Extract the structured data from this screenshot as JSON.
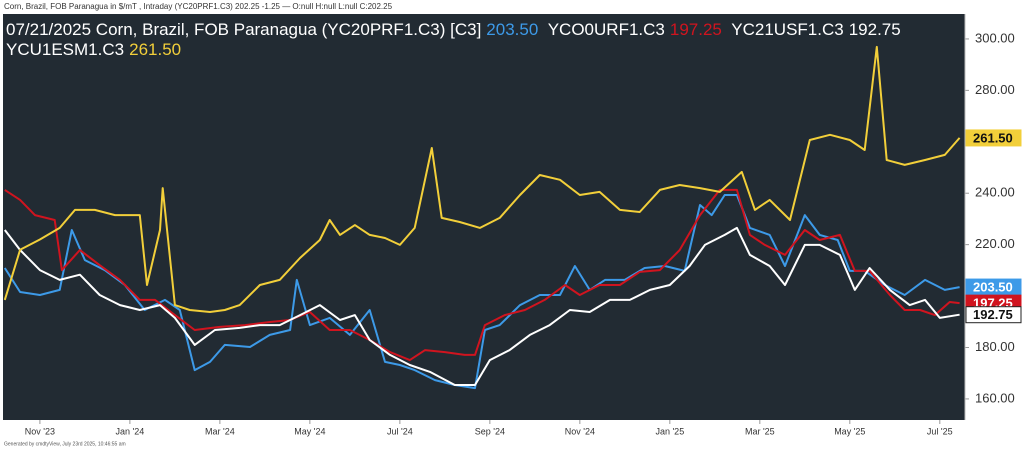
{
  "chart_data": {
    "type": "line",
    "subtitle": "Corn, Brazil, FOB Paranagua in $/mT , Intraday (YC20PRF1.C3) 202.25 -1.25 — O:null H:null L:null C:202.25",
    "note": "Generated by cmdtyView, July 23rd 2025, 10:46:55 am",
    "xlim": [
      -0.82,
      20.56
    ],
    "xticks": [
      {
        "value": 0,
        "label": "Nov '23"
      },
      {
        "value": 2,
        "label": "Jan '24"
      },
      {
        "value": 4,
        "label": "Mar '24"
      },
      {
        "value": 6,
        "label": "May '24"
      },
      {
        "value": 8,
        "label": "Jul '24"
      },
      {
        "value": 10,
        "label": "Sep '24"
      },
      {
        "value": 12,
        "label": "Nov '24"
      },
      {
        "value": 14,
        "label": "Jan '25"
      },
      {
        "value": 16,
        "label": "Mar '25"
      },
      {
        "value": 18,
        "label": "May '25"
      },
      {
        "value": 20,
        "label": "Jul '25"
      }
    ],
    "ylim": [
      151.8,
      309.7
    ],
    "yticks": [
      {
        "value": 160,
        "label": "160.00"
      },
      {
        "value": 180,
        "label": "180.00"
      },
      {
        "value": 200,
        "label": "200.00"
      },
      {
        "value": 220,
        "label": "220.00"
      },
      {
        "value": 240,
        "label": "240.00"
      },
      {
        "value": 260,
        "label": "260.00"
      },
      {
        "value": 280,
        "label": "280.00"
      },
      {
        "value": 300,
        "label": "300.00"
      }
    ],
    "series": [
      {
        "name": "07/21/2025 Corn, Brazil, FOB Paranagua (YC20PRF1.C3) [C3]",
        "color": "#3d9ae8",
        "last": {
          "value": 203.5,
          "label": "203.50"
        },
        "x": [
          -0.78,
          -0.44,
          0,
          0.44,
          0.71,
          1,
          1.44,
          1.89,
          2.33,
          2.78,
          3.11,
          3.44,
          3.78,
          4.11,
          4.67,
          5.11,
          5.56,
          5.71,
          6,
          6.44,
          6.89,
          7.33,
          7.67,
          8,
          8.33,
          8.78,
          9.22,
          9.67,
          9.89,
          10.22,
          10.67,
          11.11,
          11.56,
          11.89,
          12.22,
          12.56,
          13,
          13.44,
          13.89,
          14.33,
          14.67,
          14.93,
          15.22,
          15.49,
          15.78,
          16.22,
          16.56,
          17,
          17.33,
          17.73,
          18,
          18.33,
          18.78,
          19.22,
          19.67,
          20.11,
          20.44
        ],
        "values": [
          210.9,
          201.6,
          200.4,
          202.4,
          225.7,
          214,
          210.1,
          204.3,
          194.6,
          198.5,
          194.6,
          171.2,
          174.4,
          181,
          180.2,
          184.9,
          186.8,
          206.3,
          188.7,
          191.5,
          184.9,
          194.6,
          174.4,
          173.2,
          171.2,
          167.3,
          165.4,
          164.2,
          186.8,
          188.7,
          196.5,
          200.4,
          200.4,
          211.7,
          202.4,
          206.3,
          206.3,
          210.9,
          211.7,
          209.8,
          235.4,
          231.5,
          239.3,
          239.3,
          226.5,
          223.8,
          211.7,
          231.5,
          223.8,
          221.8,
          209.8,
          209.8,
          204.3,
          200.4,
          206.3,
          202.4,
          203.5
        ]
      },
      {
        "name": "YCO0URF1.C3",
        "color": "#d0141f",
        "last": {
          "value": 197.25,
          "label": "197.25"
        },
        "x": [
          -0.78,
          -0.44,
          -0.11,
          0.33,
          0.49,
          0.89,
          1.33,
          1.78,
          2.22,
          2.56,
          3,
          3.44,
          4,
          4.56,
          5.11,
          5.56,
          6,
          6.44,
          6.89,
          7.33,
          7.78,
          8.22,
          8.56,
          9,
          9.44,
          9.67,
          9.89,
          10.33,
          10.78,
          11.22,
          11.67,
          12,
          12.44,
          12.89,
          13.33,
          13.78,
          14.22,
          14.67,
          15.11,
          15.49,
          15.78,
          16.11,
          16.56,
          17,
          17.33,
          17.78,
          18.11,
          18.44,
          18.89,
          19.22,
          19.56,
          19.89,
          20.22,
          20.44
        ],
        "values": [
          241.3,
          237.4,
          231.5,
          229.6,
          210.1,
          217.9,
          212,
          206.3,
          198.5,
          198.5,
          192.6,
          186.8,
          188,
          188.7,
          189.9,
          190.7,
          193.8,
          186.8,
          186.8,
          182.9,
          178.2,
          175.1,
          179,
          178.2,
          177.1,
          177.1,
          188.7,
          192.6,
          194.6,
          198.5,
          204.3,
          200.4,
          204.3,
          204.3,
          209.4,
          210.1,
          217.9,
          231.5,
          241.3,
          241.3,
          223.8,
          219.9,
          216,
          225.7,
          221.8,
          223.8,
          209.8,
          209.8,
          200.4,
          194.6,
          194.6,
          192.6,
          197.7,
          197.25
        ]
      },
      {
        "name": "YC21USF1.C3",
        "color": "#ffffff",
        "last": {
          "value": 192.75,
          "label": "192.75"
        },
        "x": [
          -0.78,
          -0.44,
          0,
          0.44,
          0.89,
          1.33,
          1.78,
          2.22,
          2.67,
          3,
          3.44,
          3.89,
          4.44,
          4.89,
          5.33,
          5.78,
          6.22,
          6.67,
          7,
          7.33,
          7.78,
          8.22,
          8.67,
          9.22,
          9.67,
          10,
          10.44,
          10.89,
          11.33,
          11.78,
          12.22,
          12.67,
          13.11,
          13.56,
          14,
          14.44,
          14.78,
          15.22,
          15.49,
          15.78,
          16.22,
          16.56,
          17,
          17.33,
          17.78,
          18.11,
          18.44,
          18.89,
          19.33,
          19.67,
          20,
          20.44
        ],
        "values": [
          225.7,
          217.9,
          210.1,
          206.3,
          208.3,
          200.4,
          196.5,
          194.6,
          196.5,
          191.5,
          181,
          186.8,
          187.6,
          188.7,
          188.7,
          192.6,
          196.5,
          190.7,
          192.6,
          182.9,
          177.1,
          173.2,
          170.5,
          165.4,
          165.4,
          175.1,
          179,
          184.9,
          188.7,
          194.6,
          193.8,
          198.5,
          198.5,
          202.4,
          204.3,
          211.7,
          219.9,
          223.8,
          226.5,
          216,
          211.7,
          204.3,
          219.9,
          219.9,
          216,
          202.4,
          210.9,
          202.4,
          196.5,
          198.5,
          191.5,
          192.75
        ]
      },
      {
        "name": "YCU1ESM1.C3",
        "color": "#f2cf3a",
        "last": {
          "value": 261.5,
          "label": "261.50"
        },
        "x": [
          -0.78,
          -0.44,
          0,
          0.44,
          0.78,
          1.22,
          1.67,
          2.22,
          2.38,
          2.67,
          2.73,
          3,
          3.33,
          3.78,
          4.11,
          4.44,
          4.89,
          5.33,
          5.78,
          6.22,
          6.44,
          6.67,
          7,
          7.33,
          7.67,
          8,
          8.33,
          8.71,
          8.93,
          9.33,
          9.78,
          10.22,
          10.67,
          11.11,
          11.56,
          12,
          12.44,
          12.89,
          13.33,
          13.78,
          14.22,
          14.67,
          15.11,
          15.6,
          15.89,
          16.22,
          16.67,
          17.11,
          17.56,
          18,
          18.33,
          18.6,
          18.82,
          19.22,
          19.67,
          20.11,
          20.44
        ],
        "values": [
          198.5,
          218,
          222,
          226.5,
          233.5,
          233.5,
          231.5,
          231.5,
          204.3,
          225.7,
          242,
          196.5,
          194.6,
          193.8,
          194.6,
          196.5,
          204.3,
          206.3,
          214.8,
          221.8,
          229.6,
          223.8,
          227.6,
          223.8,
          222.6,
          219.9,
          226.5,
          257.6,
          230.4,
          228.8,
          226.5,
          230.4,
          239.3,
          247.1,
          245.2,
          239.3,
          240.5,
          233.5,
          232.7,
          241.3,
          243.2,
          242,
          240.5,
          248.3,
          233.5,
          237.4,
          229.6,
          260.7,
          262.7,
          260.7,
          256.8,
          296.9,
          252.9,
          251,
          252.9,
          254.9,
          261.5
        ]
      }
    ]
  }
}
